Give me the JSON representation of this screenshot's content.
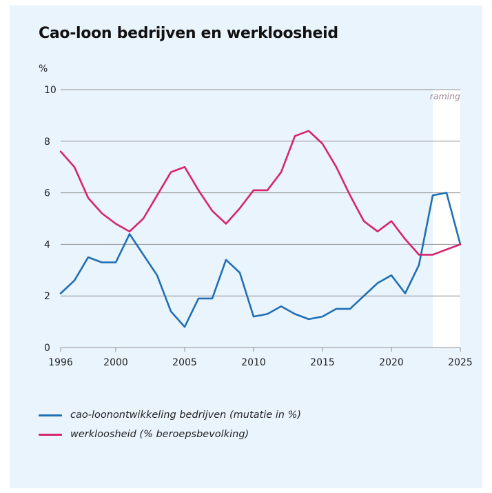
{
  "chart_data": {
    "type": "line",
    "title": "Cao-loon bedrijven en werkloosheid",
    "ylabel": "%",
    "xlim": [
      1996,
      2025
    ],
    "ylim": [
      0,
      10
    ],
    "yticks": [
      0,
      2,
      4,
      6,
      8,
      10
    ],
    "xticks": [
      1996,
      2000,
      2005,
      2010,
      2015,
      2020,
      2025
    ],
    "grid": true,
    "legend_position": "bottom",
    "forecast": {
      "label": "raming",
      "from": 2023,
      "to": 2025
    },
    "x": [
      1996,
      1997,
      1998,
      1999,
      2000,
      2001,
      2002,
      2003,
      2004,
      2005,
      2006,
      2007,
      2008,
      2009,
      2010,
      2011,
      2012,
      2013,
      2014,
      2015,
      2016,
      2017,
      2018,
      2019,
      2020,
      2021,
      2022,
      2023,
      2024,
      2025
    ],
    "series": [
      {
        "name": "cao-loonontwikkeling bedrijven (mutatie in %)",
        "color": "#1f6fb5",
        "values": [
          2.1,
          2.6,
          3.5,
          3.3,
          3.3,
          4.4,
          3.6,
          2.8,
          1.4,
          0.8,
          1.9,
          1.9,
          3.4,
          2.9,
          1.2,
          1.3,
          1.6,
          1.3,
          1.1,
          1.2,
          1.5,
          1.5,
          2.0,
          2.5,
          2.8,
          2.1,
          3.2,
          5.9,
          6.0,
          4.0
        ]
      },
      {
        "name": "werkloosheid (% beroepsbevolking)",
        "color": "#d6246e",
        "values": [
          7.6,
          7.0,
          5.8,
          5.2,
          4.8,
          4.5,
          5.0,
          5.9,
          6.8,
          7.0,
          6.1,
          5.3,
          4.8,
          5.4,
          6.1,
          6.1,
          6.8,
          8.2,
          8.4,
          7.9,
          7.0,
          5.9,
          4.9,
          4.5,
          4.9,
          4.2,
          3.6,
          3.6,
          3.8,
          4.0
        ]
      }
    ]
  },
  "colors": {
    "panel_bg": "#eaf4fd",
    "grid": "#8f8f8f",
    "forecast_band": "#ffffff",
    "forecast_label": "#a08a9a"
  }
}
